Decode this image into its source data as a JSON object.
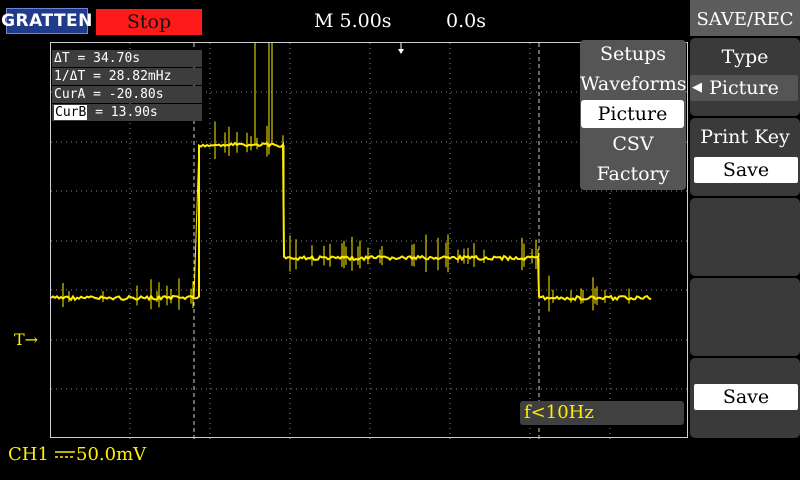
{
  "header": {
    "logo": "GRATTEN",
    "run_state": "Stop",
    "timebase": "M 5.00s",
    "trigger_position": "0.0s"
  },
  "measurements": {
    "delta_t": "ΔT  = 34.70s",
    "inv_delta_t": "1/ΔT = 28.82mHz",
    "cur_a": "CurA = -20.80s",
    "cur_b_tag": "CurB",
    "cur_b_value": " = 13.90s"
  },
  "popup_menu": {
    "items": [
      "Setups",
      "Waveforms",
      "Picture",
      "CSV",
      "Factory"
    ],
    "selected": "Picture"
  },
  "frequency_readout": "f<10Hz",
  "channel": {
    "label": "CH1",
    "scale": "50.0mV",
    "trigger_marker": "T→",
    "color": "#ffee00"
  },
  "right_panel": {
    "title": "SAVE/REC",
    "type_label": "Type",
    "type_value": "Picture",
    "print_key_label": "Print Key",
    "print_key_value": "Save",
    "save_button": "Save"
  },
  "colors": {
    "trace": "#ffee00",
    "stop_bg": "#ff1a1a",
    "panel_bg": "#3a3a3a",
    "grid": "#8a8a8a"
  }
}
